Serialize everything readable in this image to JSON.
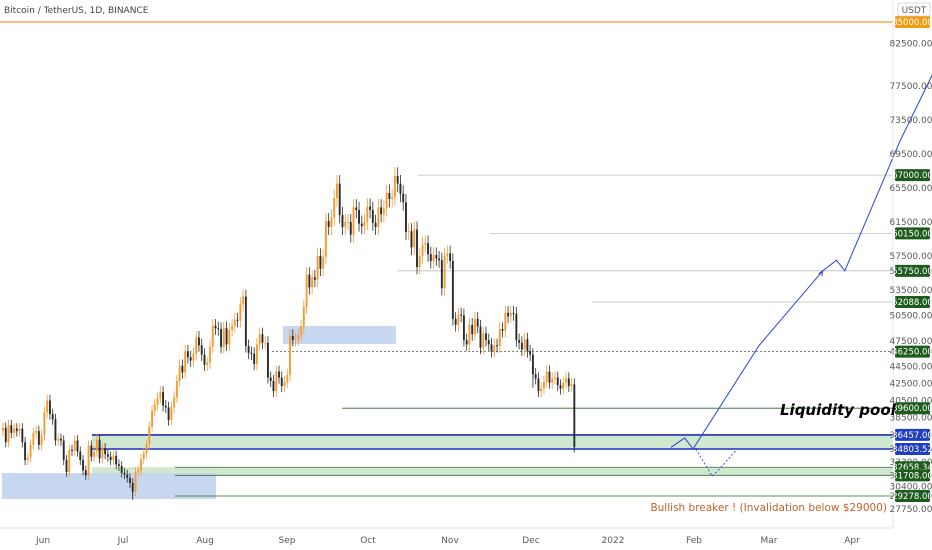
{
  "chart_data": {
    "type": "candlestick",
    "title": "Bitcoin / TetherUS, 1D, BINANCE",
    "currency_label": "USDT",
    "price_axis_ticks": [
      27750,
      29275,
      30400,
      31700,
      33300,
      34800,
      36450,
      38500,
      40500,
      42500,
      44500,
      46250,
      47500,
      50500,
      53500,
      55750,
      57500,
      61500,
      65500,
      69500,
      73500,
      77500,
      82500
    ],
    "price_axis_labels": [
      "27750.00",
      "29275.00",
      "30400.00",
      "31700.00",
      "33300.00",
      "34800.00",
      "36450.00",
      "38500.00",
      "40500.00",
      "42500.00",
      "44500.00",
      "46250.00",
      "47500.00",
      "50500.00",
      "53500.00",
      "55750.00",
      "57500.00",
      "61500.00",
      "65500.00",
      "69500.00",
      "73500.00",
      "77500.00",
      "82500.00"
    ],
    "time_axis_labels": [
      "Jun",
      "Jul",
      "Aug",
      "Sep",
      "Oct",
      "Nov",
      "Dec",
      "2022",
      "Feb",
      "Mar",
      "Apr"
    ],
    "levels": [
      {
        "price": 85000,
        "label": "85000.00",
        "color": "#f39c12"
      },
      {
        "price": 67000,
        "label": "67000.00",
        "color": "#1e5c1e"
      },
      {
        "price": 60150,
        "label": "60150.00",
        "color": "#1e5c1e"
      },
      {
        "price": 55750,
        "label": "55750.00",
        "color": "#1e5c1e"
      },
      {
        "price": 52088,
        "label": "52088.00",
        "color": "#1e5c1e"
      },
      {
        "price": 46250,
        "label": "46250.00",
        "color": "#1e5c1e"
      },
      {
        "price": 39600,
        "label": "39600.00",
        "color": "#1e5c1e"
      },
      {
        "price": 36457,
        "label": "36457.00",
        "color": "#1f3fbf"
      },
      {
        "price": 34803.52,
        "label": "34803.52",
        "color": "#1f3fbf"
      },
      {
        "price": 32658.34,
        "label": "32658.34",
        "color": "#1e5c1e"
      },
      {
        "price": 31708,
        "label": "31708.00",
        "color": "#1e5c1e"
      },
      {
        "price": 29278,
        "label": "29278.00",
        "color": "#1e5c1e"
      }
    ],
    "annotations": {
      "liquidity_pool": "Liquidity pool",
      "bullish_breaker": "Bullish breaker ! (Invalidation below $29000)"
    },
    "colors": {
      "up": "#f59a2f",
      "down": "#2a2a2a",
      "zone_green": "#cfe8cf",
      "zone_blue": "#c7d7ef",
      "projection": "#2b3fd8"
    },
    "daily_closes": [
      37300,
      35600,
      37600,
      36700,
      37200,
      36900,
      37200,
      35600,
      33500,
      33800,
      35300,
      36700,
      36900,
      35300,
      36400,
      39100,
      40500,
      38900,
      38300,
      35800,
      36000,
      35800,
      33500,
      32100,
      34700,
      34600,
      35800,
      34500,
      33500,
      32300,
      31700,
      35200,
      33900,
      34500,
      35900,
      33700,
      34900,
      34200,
      33900,
      33500,
      34000,
      33000,
      32800,
      32000,
      31800,
      31400,
      30800,
      29800,
      32100,
      32300,
      33600,
      34300,
      35400,
      37400,
      39300,
      40000,
      40800,
      41500,
      39900,
      39700,
      38200,
      39700,
      40900,
      42800,
      44600,
      43800,
      46300,
      45600,
      45200,
      46000,
      47900,
      47000,
      45900,
      44700,
      44900,
      46800,
      49300,
      49000,
      48900,
      46800,
      49000,
      47100,
      48800,
      49300,
      50000,
      49900,
      51800,
      52700,
      46900,
      46100,
      46000,
      44800,
      47100,
      48300,
      47300,
      47300,
      43200,
      42800,
      41600,
      43900,
      43200,
      42200,
      42700,
      43500,
      48100,
      47600,
      47700,
      48200,
      49200,
      51500,
      55300,
      53800,
      55000,
      54700,
      57500,
      56000,
      57400,
      61600,
      60900,
      62000,
      64300,
      66000,
      62300,
      60900,
      61500,
      61500,
      60000,
      63200,
      62900,
      61300,
      61000,
      61500,
      63300,
      62900,
      61400,
      60900,
      63200,
      62400,
      63100,
      64900,
      64200,
      64400,
      66900,
      66000,
      64800,
      63800,
      60300,
      60400,
      58500,
      60600,
      56200,
      57500,
      58800,
      59000,
      57700,
      56900,
      57600,
      57200,
      57000,
      53700,
      57500,
      57800,
      56900,
      50100,
      49400,
      50600,
      50500,
      47600,
      47100,
      49400,
      48300,
      50100,
      49200,
      46700,
      48400,
      47600,
      47100,
      46300,
      47000,
      46900,
      48900,
      48700,
      50800,
      50400,
      50800,
      50700,
      47600,
      47300,
      46500,
      47700,
      46300,
      45900,
      43600,
      43100,
      41600,
      41900,
      42700,
      43900,
      42600,
      43100,
      43200,
      42300,
      41900,
      42600,
      43100,
      42200,
      42400,
      35000
    ],
    "projection_path": [
      {
        "day": 242,
        "price": 35000
      },
      {
        "day": 247,
        "price": 36100
      },
      {
        "day": 250,
        "price": 34800
      },
      {
        "day": 274,
        "price": 47000
      },
      {
        "day": 297,
        "price": 55750
      },
      {
        "day": 302,
        "price": 57000
      },
      {
        "day": 305,
        "price": 55750
      },
      {
        "day": 325,
        "price": 71000
      },
      {
        "day": 346,
        "price": 85000
      }
    ],
    "alt_projection_path": [
      {
        "day": 251,
        "price": 34800
      },
      {
        "day": 257,
        "price": 31600
      },
      {
        "day": 260,
        "price": 32600
      },
      {
        "day": 266,
        "price": 34800
      }
    ]
  }
}
